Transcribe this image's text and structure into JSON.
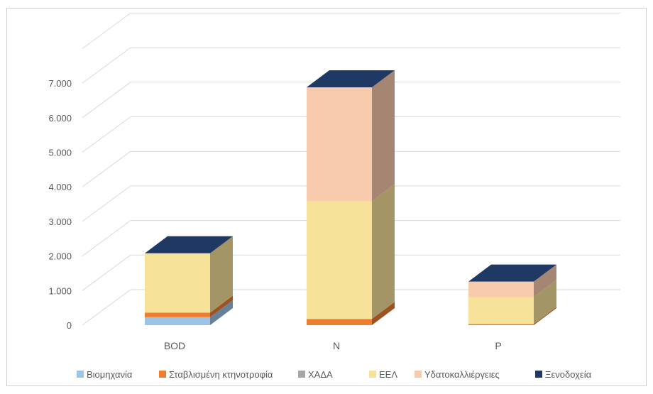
{
  "chart_data": {
    "type": "bar",
    "stacked": true,
    "three_d": true,
    "categories": [
      "BOD",
      "N",
      "P"
    ],
    "series": [
      {
        "name": "Βιομηχανία",
        "color": "#9dc3e6",
        "values": [
          230,
          0,
          0
        ]
      },
      {
        "name": "Σταβλισμένη κτηνοτροφία",
        "color": "#ed7d31",
        "values": [
          130,
          180,
          30
        ]
      },
      {
        "name": "ΧΑΔΑ",
        "color": "#a5a5a5",
        "values": [
          0,
          0,
          0
        ]
      },
      {
        "name": "ΕΕΛ",
        "color": "#f7e29a",
        "values": [
          1720,
          3400,
          780
        ]
      },
      {
        "name": "Υδατοκαλλιέργειες",
        "color": "#f8cbad",
        "values": [
          0,
          3300,
          450
        ]
      },
      {
        "name": "Ξενοδοχεία",
        "color": "#1f3864",
        "values": [
          0,
          0,
          0
        ]
      }
    ],
    "yticks": [
      "0",
      "1.000",
      "2.000",
      "3.000",
      "4.000",
      "5.000",
      "6.000",
      "7.000"
    ],
    "ylim": [
      0,
      8000
    ],
    "grid": true,
    "legend": "bottom"
  }
}
